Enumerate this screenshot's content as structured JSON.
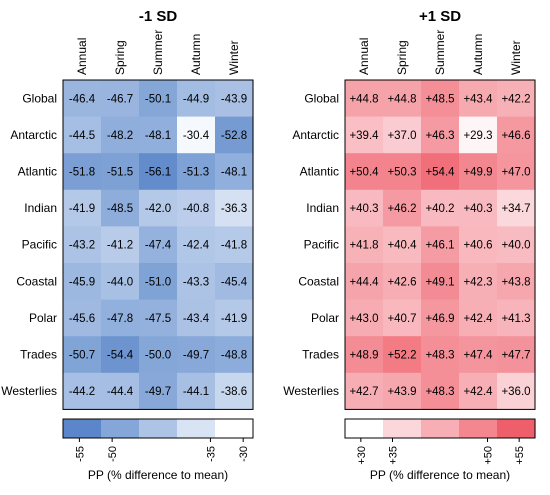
{
  "chart_data": [
    {
      "type": "heatmap",
      "title": "-1 SD",
      "columns": [
        "Annual",
        "Spring",
        "Summer",
        "Autumn",
        "Winter"
      ],
      "rows": [
        "Global",
        "Antarctic",
        "Atlantic",
        "Indian",
        "Pacific",
        "Coastal",
        "Polar",
        "Trades",
        "Westerlies"
      ],
      "values": [
        [
          "-46.4",
          "-46.7",
          "-50.1",
          "-44.9",
          "-43.9"
        ],
        [
          "-44.5",
          "-48.2",
          "-48.1",
          "-30.4",
          "-52.8"
        ],
        [
          "-51.8",
          "-51.5",
          "-56.1",
          "-51.3",
          "-48.1"
        ],
        [
          "-41.9",
          "-48.5",
          "-42.0",
          "-40.8",
          "-36.3"
        ],
        [
          "-43.2",
          "-41.2",
          "-47.4",
          "-42.4",
          "-41.8"
        ],
        [
          "-45.9",
          "-44.0",
          "-51.0",
          "-43.3",
          "-45.4"
        ],
        [
          "-45.6",
          "-47.8",
          "-47.5",
          "-43.4",
          "-41.9"
        ],
        [
          "-50.7",
          "-54.4",
          "-50.0",
          "-49.7",
          "-48.8"
        ],
        [
          "-44.2",
          "-44.4",
          "-49.7",
          "-44.1",
          "-38.6"
        ]
      ],
      "colorbar": {
        "ticks": [
          "-55",
          "-50",
          "-35",
          "-30"
        ],
        "tick_values": [
          -55,
          -50,
          -35,
          -30
        ],
        "range": [
          -57.5,
          -28.5
        ],
        "label": "PP (% difference to mean)",
        "colors": [
          "#5b86c9",
          "#84a6d8",
          "#aec4e6",
          "#d8e3f3",
          "#ffffff"
        ]
      }
    },
    {
      "type": "heatmap",
      "title": "+1 SD",
      "columns": [
        "Annual",
        "Spring",
        "Summer",
        "Autumn",
        "Winter"
      ],
      "rows": [
        "Global",
        "Antarctic",
        "Atlantic",
        "Indian",
        "Pacific",
        "Coastal",
        "Polar",
        "Trades",
        "Westerlies"
      ],
      "values": [
        [
          "+44.8",
          "+44.8",
          "+48.5",
          "+43.4",
          "+42.2"
        ],
        [
          "+39.4",
          "+37.0",
          "+46.3",
          "+29.3",
          "+46.6"
        ],
        [
          "+50.4",
          "+50.3",
          "+54.4",
          "+49.9",
          "+47.0"
        ],
        [
          "+40.3",
          "+46.2",
          "+40.2",
          "+40.3",
          "+34.7"
        ],
        [
          "+41.8",
          "+40.4",
          "+46.1",
          "+40.6",
          "+40.0"
        ],
        [
          "+44.4",
          "+42.6",
          "+49.1",
          "+42.3",
          "+43.8"
        ],
        [
          "+43.0",
          "+40.7",
          "+46.9",
          "+42.4",
          "+41.3"
        ],
        [
          "+48.9",
          "+52.2",
          "+48.3",
          "+47.4",
          "+47.7"
        ],
        [
          "+42.7",
          "+43.9",
          "+48.3",
          "+42.4",
          "+36.0"
        ]
      ],
      "colorbar": {
        "ticks": [
          "+30",
          "+35",
          "+50",
          "+55"
        ],
        "tick_values": [
          30,
          35,
          50,
          55
        ],
        "range": [
          27.5,
          57.5
        ],
        "label": "PP (% difference to mean)",
        "colors": [
          "#ffffff",
          "#fbd6da",
          "#f7aeb5",
          "#f3868f",
          "#ef5f6b"
        ]
      }
    }
  ]
}
